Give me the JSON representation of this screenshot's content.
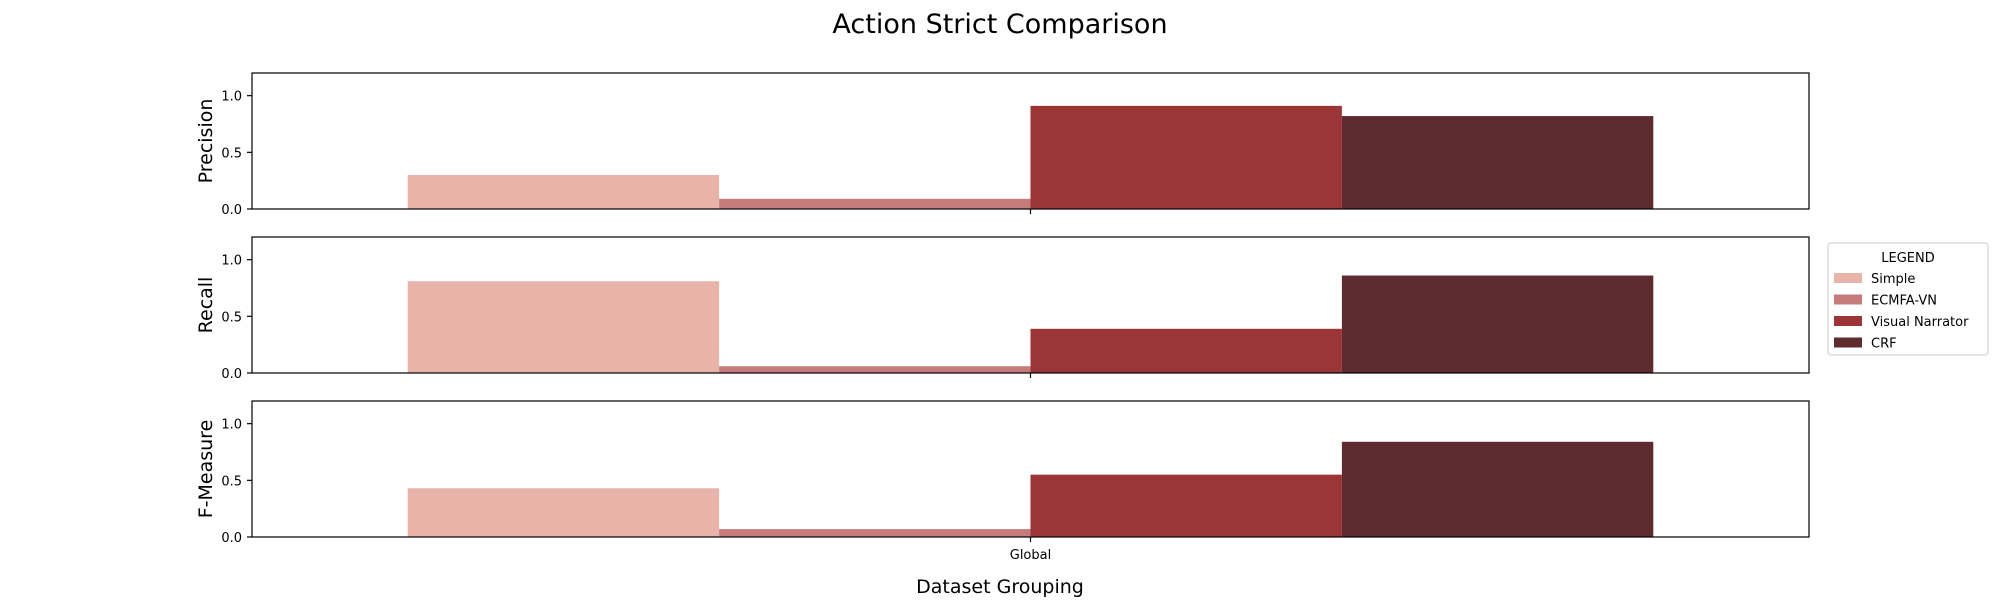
{
  "figure": {
    "title": "Action Strict Comparison",
    "xlabel": "Dataset Grouping"
  },
  "legend": {
    "title": "LEGEND",
    "placement": "right"
  },
  "colors": {
    "Simple": "#e8b4aa",
    "ECMFA-VN": "#c77c7c",
    "Visual Narrator": "#9b3538",
    "CRF": "#5e2c2e"
  },
  "chart_data": [
    {
      "type": "bar",
      "ylabel": "Precision",
      "categories": [
        "Global"
      ],
      "ylim": [
        0,
        1.2
      ],
      "yticks": [
        0.0,
        0.5,
        1.0
      ],
      "grid": false,
      "series": [
        {
          "name": "Simple",
          "values": [
            0.3
          ]
        },
        {
          "name": "ECMFA-VN",
          "values": [
            0.09
          ]
        },
        {
          "name": "Visual Narrator",
          "values": [
            0.91
          ]
        },
        {
          "name": "CRF",
          "values": [
            0.82
          ]
        }
      ]
    },
    {
      "type": "bar",
      "ylabel": "Recall",
      "categories": [
        "Global"
      ],
      "ylim": [
        0,
        1.2
      ],
      "yticks": [
        0.0,
        0.5,
        1.0
      ],
      "grid": false,
      "series": [
        {
          "name": "Simple",
          "values": [
            0.81
          ]
        },
        {
          "name": "ECMFA-VN",
          "values": [
            0.06
          ]
        },
        {
          "name": "Visual Narrator",
          "values": [
            0.39
          ]
        },
        {
          "name": "CRF",
          "values": [
            0.86
          ]
        }
      ]
    },
    {
      "type": "bar",
      "ylabel": "F-Measure",
      "categories": [
        "Global"
      ],
      "ylim": [
        0,
        1.2
      ],
      "yticks": [
        0.0,
        0.5,
        1.0
      ],
      "grid": false,
      "series": [
        {
          "name": "Simple",
          "values": [
            0.43
          ]
        },
        {
          "name": "ECMFA-VN",
          "values": [
            0.07
          ]
        },
        {
          "name": "Visual Narrator",
          "values": [
            0.55
          ]
        },
        {
          "name": "CRF",
          "values": [
            0.84
          ]
        }
      ]
    }
  ]
}
